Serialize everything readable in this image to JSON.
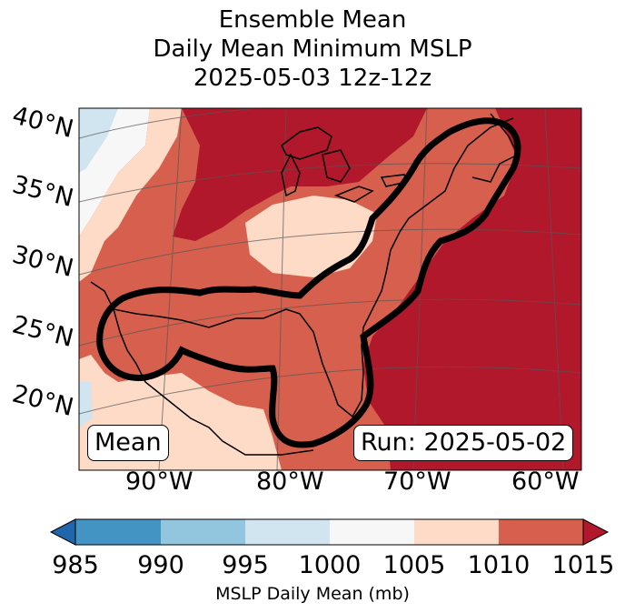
{
  "title": {
    "line1": "Ensemble Mean",
    "line2": "Daily Mean Minimum MSLP",
    "line3": "2025-05-03 12z-12z"
  },
  "map": {
    "lat_labels": [
      "40°N",
      "35°N",
      "30°N",
      "25°N",
      "20°N"
    ],
    "lon_labels": [
      "90°W",
      "80°W",
      "70°W",
      "60°W"
    ],
    "mean_label": "Mean",
    "run_label": "Run: 2025-05-02"
  },
  "colorbar": {
    "ticks": [
      "985",
      "990",
      "995",
      "1000",
      "1005",
      "1010",
      "1015"
    ],
    "label": "MSLP Daily Mean (mb)",
    "colors": [
      "#2166ac",
      "#4393c3",
      "#92c5de",
      "#d1e5f0",
      "#f7f7f7",
      "#fddbc7",
      "#d6604d",
      "#b2182b"
    ]
  }
}
